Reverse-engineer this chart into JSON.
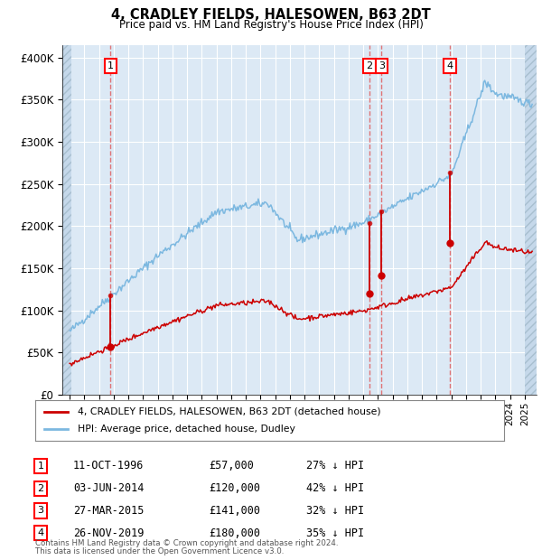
{
  "title": "4, CRADLEY FIELDS, HALESOWEN, B63 2DT",
  "subtitle": "Price paid vs. HM Land Registry's House Price Index (HPI)",
  "hpi_color": "#7cb8e0",
  "price_color": "#cc0000",
  "bg_color": "#dce9f5",
  "grid_color": "#ffffff",
  "dashed_color": "#e06060",
  "ytick_labels": [
    "£0",
    "£50K",
    "£100K",
    "£150K",
    "£200K",
    "£250K",
    "£300K",
    "£350K",
    "£400K"
  ],
  "yticks": [
    0,
    50000,
    100000,
    150000,
    200000,
    250000,
    300000,
    350000,
    400000
  ],
  "xlim_start": 1993.5,
  "xlim_end": 2025.8,
  "ylim": [
    0,
    415000
  ],
  "sales": [
    {
      "num": 1,
      "year": 1996.78,
      "price": 57000,
      "date": "11-OCT-1996",
      "pct": "27%",
      "dir": "↓"
    },
    {
      "num": 2,
      "year": 2014.42,
      "price": 120000,
      "date": "03-JUN-2014",
      "pct": "42%",
      "dir": "↓"
    },
    {
      "num": 3,
      "year": 2015.23,
      "price": 141000,
      "date": "27-MAR-2015",
      "pct": "32%",
      "dir": "↓"
    },
    {
      "num": 4,
      "year": 2019.9,
      "price": 180000,
      "date": "26-NOV-2019",
      "pct": "35%",
      "dir": "↓"
    }
  ],
  "legend_line1": "4, CRADLEY FIELDS, HALESOWEN, B63 2DT (detached house)",
  "legend_line2": "HPI: Average price, detached house, Dudley",
  "footer1": "Contains HM Land Registry data © Crown copyright and database right 2024.",
  "footer2": "This data is licensed under the Open Government Licence v3.0."
}
